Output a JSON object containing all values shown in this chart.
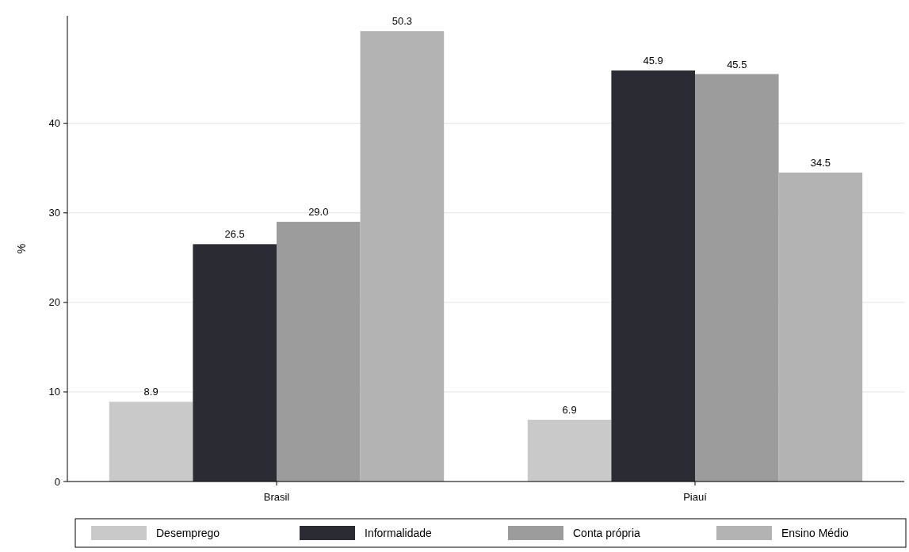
{
  "chart_data": {
    "type": "bar",
    "ylabel": "%",
    "categories": [
      "Brasil",
      "Piauí"
    ],
    "series": [
      {
        "name": "Desemprego",
        "color": "#c9c9c9",
        "values": [
          8.9,
          6.9
        ],
        "value_labels": [
          "8.9",
          "6.9"
        ]
      },
      {
        "name": "Informalidade",
        "color": "#2b2b33",
        "values": [
          26.5,
          45.9
        ],
        "value_labels": [
          "26.5",
          "45.9"
        ]
      },
      {
        "name": "Conta própria",
        "color": "#9c9c9c",
        "values": [
          29.0,
          45.5
        ],
        "value_labels": [
          "29.0",
          "45.5"
        ]
      },
      {
        "name": "Ensino Médio",
        "color": "#b3b3b3",
        "values": [
          50.3,
          34.5
        ],
        "value_labels": [
          "50.3",
          "34.5"
        ]
      }
    ],
    "ylim": [
      0,
      52
    ],
    "yticks": [
      0,
      10,
      20,
      30,
      40
    ],
    "grid": "y",
    "legend": "bottom"
  }
}
